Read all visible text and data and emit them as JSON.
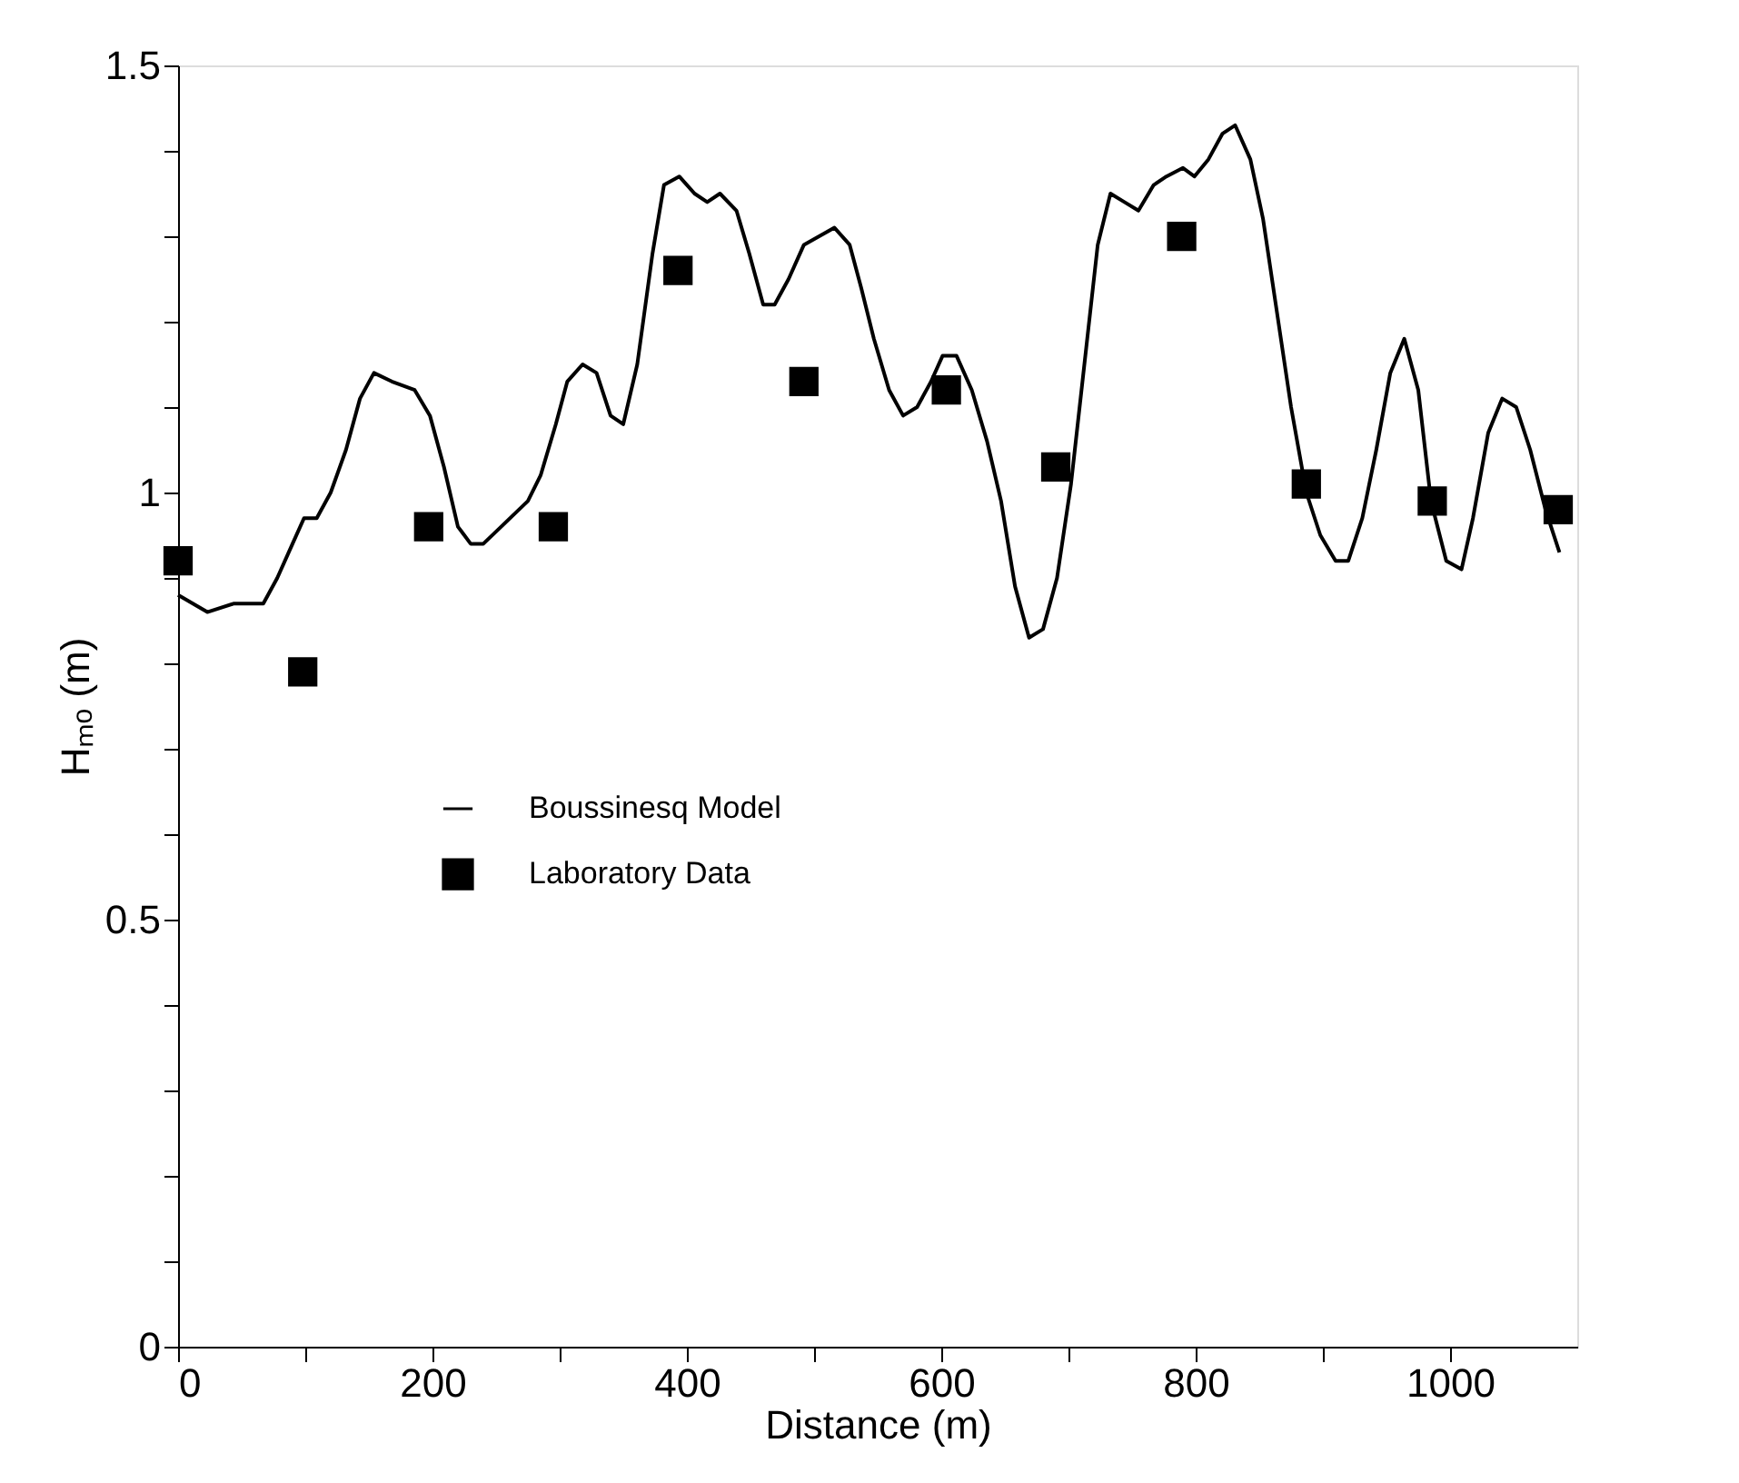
{
  "chart_data": {
    "type": "line",
    "xlabel": "Distance (m)",
    "ylabel": "Hₘₒ (m)",
    "xlim": [
      0,
      1100
    ],
    "ylim": [
      0,
      1.5
    ],
    "xticks": [
      0,
      {
        "value": 100,
        "label": null
      },
      200,
      {
        "value": 300,
        "label": null
      },
      400,
      {
        "value": 500,
        "label": null
      },
      600,
      {
        "value": 700,
        "label": null
      },
      800,
      {
        "value": 900,
        "label": null
      },
      1000
    ],
    "yticks": [
      0,
      {
        "value": 0.1,
        "label": null
      },
      {
        "value": 0.2,
        "label": null
      },
      {
        "value": 0.3,
        "label": null
      },
      {
        "value": 0.4,
        "label": null
      },
      0.5,
      {
        "value": 0.6,
        "label": null
      },
      {
        "value": 0.7,
        "label": null
      },
      {
        "value": 0.8,
        "label": null
      },
      {
        "value": 0.9,
        "label": null
      },
      1,
      {
        "value": 1.1,
        "label": null
      },
      {
        "value": 1.2,
        "label": null
      },
      {
        "value": 1.3,
        "label": null
      },
      {
        "value": 1.4,
        "label": null
      },
      1.5
    ],
    "grid": false,
    "legend": "left",
    "series": [
      {
        "name": "Boussinesq Model",
        "color": "#000000",
        "marker": "none",
        "line_style": "solid",
        "x": [
          0,
          23,
          44,
          56,
          67,
          78,
          90,
          99,
          109,
          120,
          132,
          143,
          154,
          168,
          186,
          198,
          209,
          220,
          230,
          240,
          254,
          275,
          285,
          297,
          306,
          318,
          329,
          340,
          350,
          361,
          373,
          382,
          394,
          406,
          416,
          426,
          439,
          449,
          460,
          469,
          480,
          492,
          504,
          516,
          528,
          537,
          547,
          559,
          570,
          581,
          592,
          601,
          612,
          624,
          636,
          647,
          658,
          669,
          680,
          691,
          702,
          714,
          723,
          733,
          744,
          755,
          767,
          777,
          790,
          799,
          810,
          821,
          831,
          843,
          853,
          863,
          875,
          887,
          898,
          910,
          920,
          931,
          942,
          953,
          964,
          975,
          985,
          997,
          1009,
          1018,
          1030,
          1041,
          1052,
          1063,
          1075,
          1086
        ],
        "values": [
          0.88,
          0.86,
          0.87,
          0.87,
          0.87,
          0.9,
          0.94,
          0.97,
          0.97,
          1.0,
          1.05,
          1.11,
          1.14,
          1.13,
          1.12,
          1.09,
          1.03,
          0.96,
          0.94,
          0.94,
          0.96,
          0.99,
          1.02,
          1.08,
          1.13,
          1.15,
          1.14,
          1.09,
          1.08,
          1.15,
          1.28,
          1.36,
          1.37,
          1.35,
          1.34,
          1.35,
          1.33,
          1.28,
          1.22,
          1.22,
          1.25,
          1.29,
          1.3,
          1.31,
          1.29,
          1.24,
          1.18,
          1.12,
          1.09,
          1.1,
          1.13,
          1.16,
          1.16,
          1.12,
          1.06,
          0.99,
          0.89,
          0.83,
          0.84,
          0.9,
          1.01,
          1.17,
          1.29,
          1.35,
          1.34,
          1.33,
          1.36,
          1.37,
          1.38,
          1.37,
          1.39,
          1.42,
          1.43,
          1.39,
          1.32,
          1.22,
          1.1,
          1.0,
          0.95,
          0.92,
          0.92,
          0.97,
          1.05,
          1.14,
          1.18,
          1.12,
          0.99,
          0.92,
          0.91,
          0.97,
          1.07,
          1.11,
          1.1,
          1.05,
          0.98,
          0.93
        ]
      },
      {
        "name": "Laboratory Data",
        "type": "scatter",
        "color": "#000000",
        "marker": "square",
        "x": [
          0,
          98,
          197,
          295,
          393,
          492,
          604,
          690,
          789,
          887,
          986,
          1085
        ],
        "values": [
          0.92,
          0.79,
          0.96,
          0.96,
          1.26,
          1.13,
          1.12,
          1.03,
          1.3,
          1.01,
          0.99,
          0.98
        ]
      }
    ]
  }
}
